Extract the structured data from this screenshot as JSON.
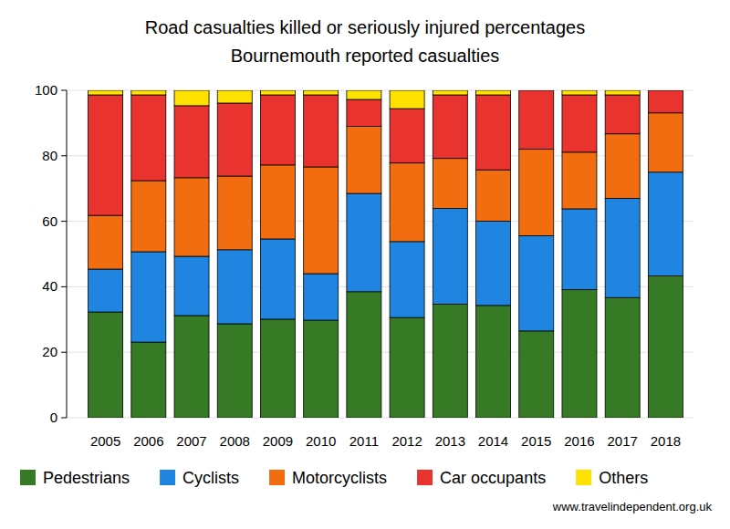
{
  "chart_data": {
    "type": "bar",
    "stacked": true,
    "title": "Road casualties killed or seriously injured percentages",
    "subtitle": "Bournemouth reported casualties",
    "annotations": [
      "www.travelindependent.org.uk"
    ],
    "categories": [
      "2005",
      "2006",
      "2007",
      "2008",
      "2009",
      "2010",
      "2011",
      "2012",
      "2013",
      "2014",
      "2015",
      "2016",
      "2017",
      "2018"
    ],
    "series": [
      {
        "name": "Pedestrians",
        "color": "#367a25",
        "values": [
          32.3,
          23.1,
          31.2,
          28.7,
          30.1,
          29.8,
          38.5,
          30.6,
          34.7,
          34.3,
          26.5,
          39.1,
          36.7,
          43.3
        ]
      },
      {
        "name": "Cyclists",
        "color": "#1f85e0",
        "values": [
          13.1,
          27.6,
          18.1,
          22.6,
          24.5,
          14.2,
          30.0,
          23.2,
          29.2,
          25.7,
          29.1,
          24.7,
          30.3,
          31.7
        ]
      },
      {
        "name": "Motorcyclists",
        "color": "#f26d0f",
        "values": [
          16.4,
          21.7,
          24.0,
          22.5,
          22.6,
          32.6,
          20.5,
          24.0,
          15.3,
          15.7,
          26.4,
          17.3,
          19.7,
          18.1
        ]
      },
      {
        "name": "Car occupants",
        "color": "#e8332f",
        "values": [
          36.8,
          26.2,
          22.0,
          22.3,
          21.4,
          22.0,
          8.2,
          16.6,
          19.4,
          22.9,
          18.0,
          17.5,
          11.9,
          6.9
        ]
      },
      {
        "name": "Others",
        "color": "#ffe100",
        "values": [
          1.4,
          1.4,
          4.7,
          3.9,
          1.4,
          1.4,
          2.8,
          5.6,
          1.4,
          1.4,
          0,
          1.4,
          1.4,
          0
        ]
      }
    ],
    "ylim": [
      0,
      100
    ],
    "yticks": [
      0,
      20,
      40,
      60,
      80,
      100
    ],
    "grid": true,
    "legend": "bottom"
  }
}
